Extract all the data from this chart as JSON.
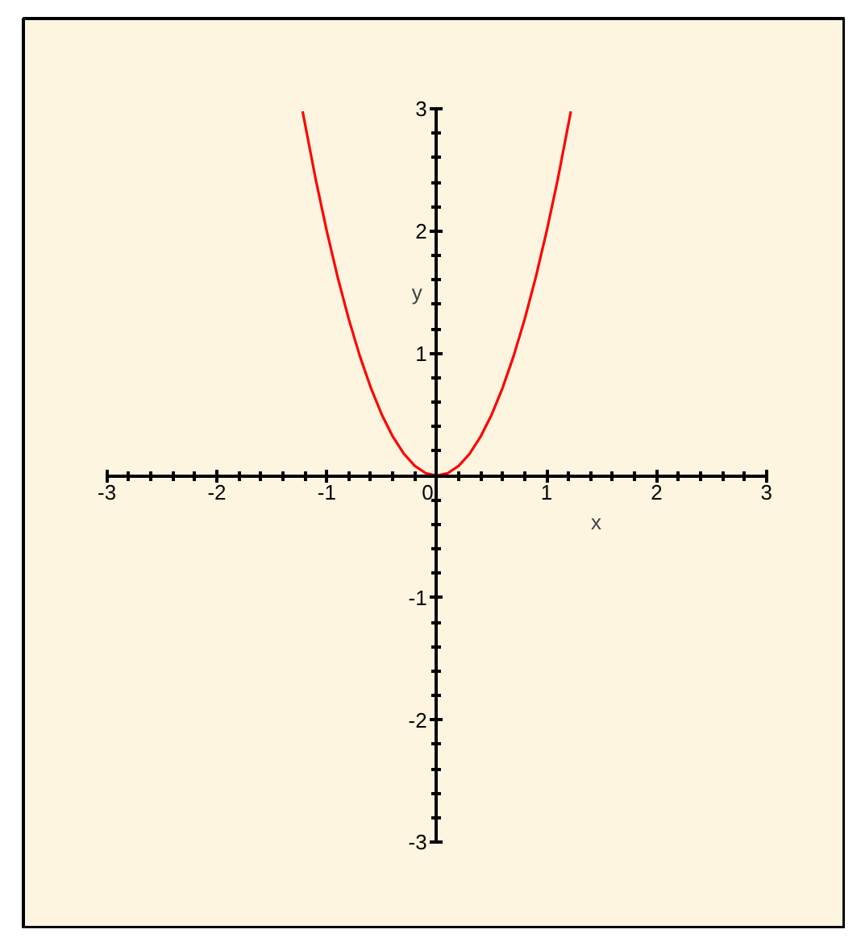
{
  "chart_data": {
    "type": "line",
    "xlabel": "x",
    "ylabel": "y",
    "x": [
      -1.22,
      -1.1,
      -1.0,
      -0.9,
      -0.8,
      -0.7,
      -0.6,
      -0.5,
      -0.4,
      -0.3,
      -0.2,
      -0.1,
      0,
      0.1,
      0.2,
      0.3,
      0.4,
      0.5,
      0.6,
      0.7,
      0.8,
      0.9,
      1.0,
      1.1,
      1.22
    ],
    "series": [
      {
        "color": "#ff0000",
        "values": [
          2.98,
          2.42,
          2.0,
          1.62,
          1.28,
          0.98,
          0.72,
          0.5,
          0.32,
          0.18,
          0.08,
          0.02,
          0,
          0.02,
          0.08,
          0.18,
          0.32,
          0.5,
          0.72,
          0.98,
          1.28,
          1.62,
          2.0,
          2.42,
          2.98
        ]
      }
    ],
    "xlim": [
      -3.76,
      3.72
    ],
    "ylim": [
      -3.71,
      3.74
    ],
    "xticks": [
      -3,
      -2,
      -1,
      0,
      1,
      2,
      3
    ],
    "yticks": [
      -3,
      -2,
      -1,
      {
        "value": 0,
        "label": null
      },
      1,
      2,
      3
    ],
    "grid": false,
    "marker": "none",
    "line_style": "solid"
  }
}
